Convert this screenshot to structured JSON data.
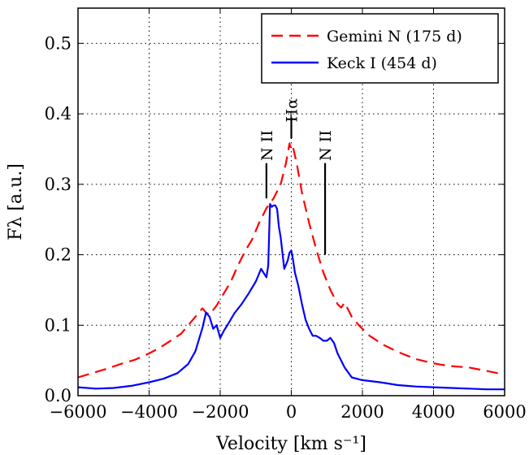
{
  "chart_data": {
    "type": "line",
    "title": "",
    "xlabel": "Velocity [km s⁻¹]",
    "ylabel": "Fλ [a.u.]",
    "xlim": [
      -6000,
      6000
    ],
    "ylim": [
      0.0,
      0.55
    ],
    "xticks": [
      -6000,
      -4000,
      -2000,
      0,
      2000,
      4000,
      6000
    ],
    "xtick_labels": [
      "−6000",
      "−4000",
      "−2000",
      "0",
      "2000",
      "4000",
      "6000"
    ],
    "yticks": [
      0.0,
      0.1,
      0.2,
      0.3,
      0.4,
      0.5
    ],
    "ytick_labels": [
      "0.0",
      "0.1",
      "0.2",
      "0.3",
      "0.4",
      "0.5"
    ],
    "grid": true,
    "legend_position": "top-right",
    "series": [
      {
        "name": "Gemini N (175 d)",
        "color": "#ff0000",
        "style": "dashed",
        "x": [
          -6000,
          -5600,
          -5200,
          -4800,
          -4400,
          -4000,
          -3700,
          -3400,
          -3100,
          -2900,
          -2700,
          -2500,
          -2400,
          -2300,
          -2100,
          -1900,
          -1700,
          -1500,
          -1300,
          -1100,
          -900,
          -700,
          -500,
          -300,
          -150,
          -50,
          0,
          50,
          150,
          300,
          500,
          700,
          900,
          1100,
          1300,
          1400,
          1500,
          1700,
          1900,
          2200,
          2600,
          3000,
          3500,
          4000,
          4200,
          4500,
          5000,
          5500,
          6000
        ],
        "y": [
          0.026,
          0.032,
          0.038,
          0.045,
          0.051,
          0.06,
          0.068,
          0.078,
          0.088,
          0.1,
          0.112,
          0.124,
          0.118,
          0.115,
          0.128,
          0.145,
          0.162,
          0.185,
          0.205,
          0.222,
          0.246,
          0.266,
          0.28,
          0.3,
          0.33,
          0.358,
          0.348,
          0.352,
          0.33,
          0.288,
          0.245,
          0.208,
          0.175,
          0.15,
          0.13,
          0.125,
          0.132,
          0.112,
          0.1,
          0.085,
          0.072,
          0.062,
          0.052,
          0.046,
          0.044,
          0.042,
          0.04,
          0.035,
          0.03
        ]
      },
      {
        "name": "Keck I (454 d)",
        "color": "#0000ff",
        "style": "solid",
        "x": [
          -6000,
          -5500,
          -5000,
          -4500,
          -4000,
          -3600,
          -3200,
          -2900,
          -2700,
          -2500,
          -2400,
          -2300,
          -2200,
          -2100,
          -2000,
          -1900,
          -1800,
          -1600,
          -1400,
          -1200,
          -1000,
          -850,
          -700,
          -650,
          -600,
          -550,
          -500,
          -450,
          -400,
          -350,
          -300,
          -200,
          -100,
          -50,
          0,
          50,
          100,
          200,
          300,
          400,
          500,
          600,
          700,
          800,
          900,
          1000,
          1100,
          1200,
          1300,
          1500,
          1700,
          2000,
          2500,
          3000,
          3500,
          4000,
          4500,
          5000,
          5500,
          6000
        ],
        "y": [
          0.012,
          0.01,
          0.011,
          0.014,
          0.019,
          0.024,
          0.032,
          0.045,
          0.063,
          0.096,
          0.118,
          0.112,
          0.095,
          0.1,
          0.082,
          0.092,
          0.1,
          0.117,
          0.13,
          0.145,
          0.162,
          0.18,
          0.168,
          0.185,
          0.272,
          0.268,
          0.27,
          0.27,
          0.265,
          0.24,
          0.225,
          0.18,
          0.192,
          0.203,
          0.206,
          0.192,
          0.175,
          0.155,
          0.13,
          0.108,
          0.095,
          0.085,
          0.085,
          0.082,
          0.078,
          0.078,
          0.082,
          0.075,
          0.06,
          0.04,
          0.026,
          0.022,
          0.019,
          0.015,
          0.013,
          0.012,
          0.011,
          0.01,
          0.009,
          0.009
        ]
      }
    ],
    "annotations": [
      {
        "text": "N II",
        "x": -700,
        "line_y": [
          0.28,
          0.33
        ],
        "label_y": 0.355
      },
      {
        "text": "Hα",
        "x": 0,
        "line_y": [
          0.365,
          0.395
        ],
        "label_y": 0.405
      },
      {
        "text": "N II",
        "x": 950,
        "line_y": [
          0.2,
          0.33
        ],
        "label_y": 0.355
      }
    ]
  }
}
